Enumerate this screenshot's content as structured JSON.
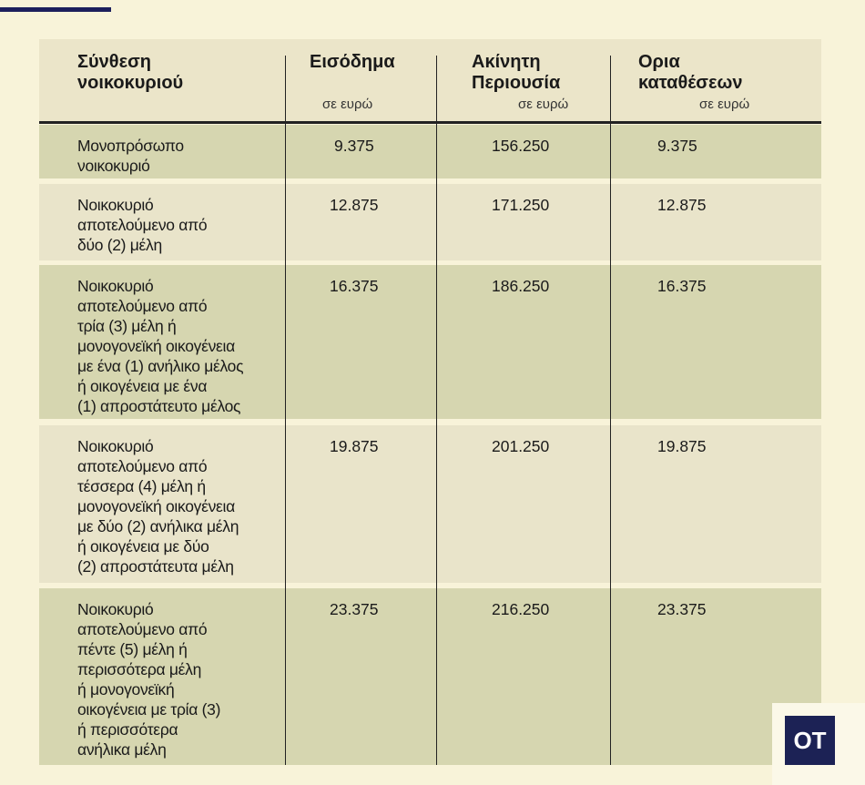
{
  "header": {
    "col1": "Σύνθεση\nνοικοκυριού",
    "col2": "Εισόδημα",
    "col3": "Ακίνητη\nΠεριουσία",
    "col4": "Ορια\nκαταθέσεων",
    "unit": "σε ευρώ"
  },
  "rows": [
    {
      "composition": "Μονοπρόσωπο\nνοικοκυριό",
      "income": "9.375",
      "property": "156.250",
      "deposits": "9.375"
    },
    {
      "composition": "Νοικοκυριό\nαποτελούμενο από\nδύο (2) μέλη",
      "income": "12.875",
      "property": "171.250",
      "deposits": "12.875"
    },
    {
      "composition": "Νοικοκυριό\nαποτελούμενο από\nτρία (3) μέλη ή\nμονογονεϊκή οικογένεια\nμε ένα (1) ανήλικο μέλος\nή οικογένεια με ένα\n(1) απροστάτευτο μέλος",
      "income": "16.375",
      "property": "186.250",
      "deposits": "16.375"
    },
    {
      "composition": "Νοικοκυριό\nαποτελούμενο από\nτέσσερα (4) μέλη ή\nμονογονεϊκή οικογένεια\nμε δύο (2) ανήλικα μέλη\nή οικογένεια με δύο\n(2) απροστάτευτα μέλη",
      "income": "19.875",
      "property": "201.250",
      "deposits": "19.875"
    },
    {
      "composition": "Νοικοκυριό\nαποτελούμενο από\nπέντε (5) μέλη ή\nπερισσότερα μέλη\nή μονογονεϊκή\nοικογένεια με τρία (3)\nή περισσότερα\nανήλικα μέλη",
      "income": "23.375",
      "property": "216.250",
      "deposits": "23.375"
    }
  ],
  "logo": "OT",
  "colors": {
    "accent": "#1c2255",
    "row_dark": "#d6d6b0",
    "row_light": "#e9e4ca",
    "background": "#f8f3d9"
  }
}
